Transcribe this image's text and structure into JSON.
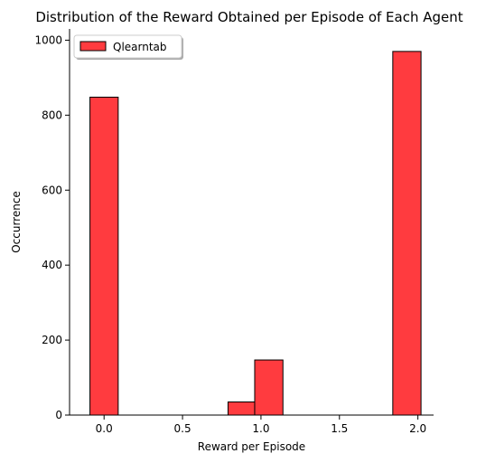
{
  "chart_data": {
    "type": "bar",
    "title": "Distribution of the Reward Obtained per Episode of Each Agent",
    "xlabel": "Reward per Episode",
    "ylabel": "Occurrence",
    "xlim": [
      -0.22,
      2.1
    ],
    "ylim": [
      0,
      1030
    ],
    "xticks": [
      0.0,
      0.5,
      1.0,
      1.5,
      2.0
    ],
    "xtick_labels": [
      "0.0",
      "0.5",
      "1.0",
      "1.5",
      "2.0"
    ],
    "yticks": [
      0,
      200,
      400,
      600,
      800,
      1000
    ],
    "ytick_labels": [
      "0",
      "200",
      "400",
      "600",
      "800",
      "1000"
    ],
    "grid": false,
    "legend_position": "top-left",
    "series": [
      {
        "name": "Qlearntab",
        "color": "#ff3b3f",
        "edge_color": "#000000",
        "bins": [
          {
            "x0": -0.09,
            "x1": 0.09,
            "count": 848
          },
          {
            "x0": 0.79,
            "x1": 0.96,
            "count": 35
          },
          {
            "x0": 0.96,
            "x1": 1.14,
            "count": 147
          },
          {
            "x0": 1.84,
            "x1": 2.02,
            "count": 970
          }
        ]
      }
    ]
  }
}
